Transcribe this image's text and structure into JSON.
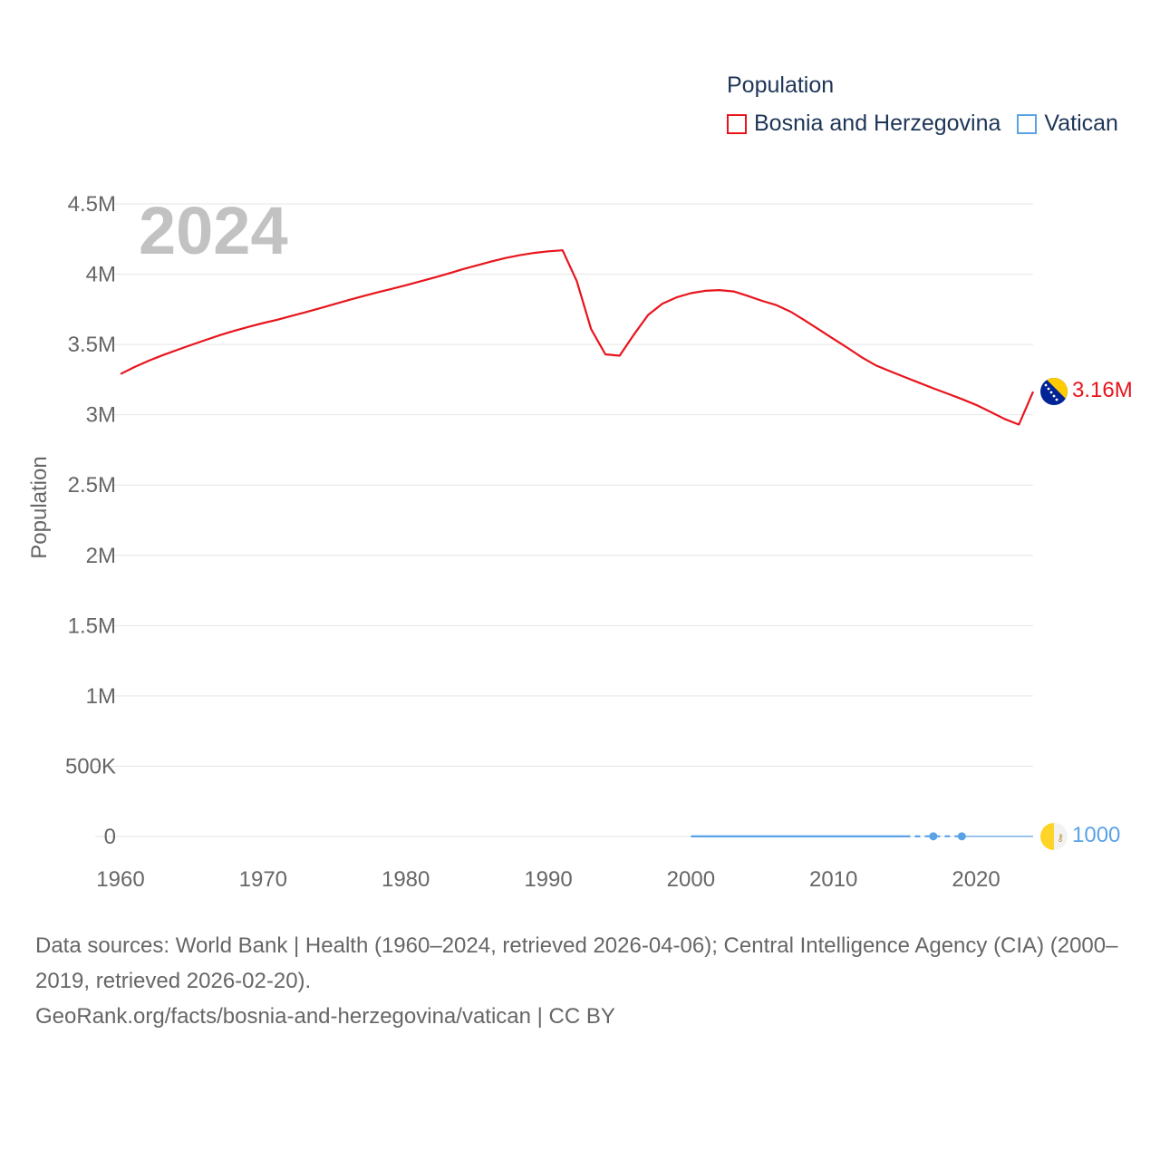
{
  "legend": {
    "title": "Population",
    "items": [
      {
        "label": "Bosnia and Herzegovina",
        "color": "#e8141c"
      },
      {
        "label": "Vatican",
        "color": "#5aa2e6"
      }
    ]
  },
  "footer": {
    "sources": "Data sources: World Bank | Health (1960–2024, retrieved 2026-04-06); Central Intelligence Agency (CIA) (2000–2019, retrieved 2026-02-20).",
    "credit": "GeoRank.org/facts/bosnia-and-herzegovina/vatican | CC BY"
  },
  "chart_data": {
    "type": "line",
    "title": "Population",
    "year_label": "2024",
    "ylabel": "Population",
    "xlim": [
      1960,
      2024
    ],
    "ylim": [
      0,
      4500000
    ],
    "x_ticks": [
      {
        "value": 1960,
        "label": "1960"
      },
      {
        "value": 1970,
        "label": "1970"
      },
      {
        "value": 1980,
        "label": "1980"
      },
      {
        "value": 1990,
        "label": "1990"
      },
      {
        "value": 2000,
        "label": "2000"
      },
      {
        "value": 2010,
        "label": "2010"
      },
      {
        "value": 2020,
        "label": "2020"
      }
    ],
    "y_ticks": [
      {
        "value": 0,
        "label": "0"
      },
      {
        "value": 500000,
        "label": "500K"
      },
      {
        "value": 1000000,
        "label": "1M"
      },
      {
        "value": 1500000,
        "label": "1.5M"
      },
      {
        "value": 2000000,
        "label": "2M"
      },
      {
        "value": 2500000,
        "label": "2.5M"
      },
      {
        "value": 3000000,
        "label": "3M"
      },
      {
        "value": 3500000,
        "label": "3.5M"
      },
      {
        "value": 4000000,
        "label": "4M"
      },
      {
        "value": 4500000,
        "label": "4.5M"
      }
    ],
    "grid": true,
    "series": [
      {
        "name": "Bosnia and Herzegovina",
        "color": "#e8141c",
        "end_label": "3.16M",
        "flag_icon": "bosnia-flag-icon",
        "points": [
          [
            1960,
            3290000
          ],
          [
            1961,
            3340000
          ],
          [
            1962,
            3385000
          ],
          [
            1963,
            3425000
          ],
          [
            1964,
            3462000
          ],
          [
            1965,
            3498000
          ],
          [
            1966,
            3533000
          ],
          [
            1967,
            3567000
          ],
          [
            1968,
            3598000
          ],
          [
            1969,
            3626000
          ],
          [
            1970,
            3652000
          ],
          [
            1971,
            3676000
          ],
          [
            1972,
            3703000
          ],
          [
            1973,
            3730000
          ],
          [
            1974,
            3758000
          ],
          [
            1975,
            3787000
          ],
          [
            1976,
            3816000
          ],
          [
            1977,
            3844000
          ],
          [
            1978,
            3870000
          ],
          [
            1979,
            3895000
          ],
          [
            1980,
            3921000
          ],
          [
            1981,
            3948000
          ],
          [
            1982,
            3976000
          ],
          [
            1983,
            4005000
          ],
          [
            1984,
            4035000
          ],
          [
            1985,
            4063000
          ],
          [
            1986,
            4090000
          ],
          [
            1987,
            4115000
          ],
          [
            1988,
            4135000
          ],
          [
            1989,
            4151000
          ],
          [
            1990,
            4163000
          ],
          [
            1991,
            4170000
          ],
          [
            1992,
            3950000
          ],
          [
            1993,
            3610000
          ],
          [
            1994,
            3430000
          ],
          [
            1995,
            3420000
          ],
          [
            1996,
            3570000
          ],
          [
            1997,
            3710000
          ],
          [
            1998,
            3790000
          ],
          [
            1999,
            3835000
          ],
          [
            2000,
            3865000
          ],
          [
            2001,
            3882000
          ],
          [
            2002,
            3887000
          ],
          [
            2003,
            3877000
          ],
          [
            2004,
            3845000
          ],
          [
            2005,
            3810000
          ],
          [
            2006,
            3780000
          ],
          [
            2007,
            3733000
          ],
          [
            2008,
            3670000
          ],
          [
            2009,
            3605000
          ],
          [
            2010,
            3540000
          ],
          [
            2011,
            3475000
          ],
          [
            2012,
            3408000
          ],
          [
            2013,
            3350000
          ],
          [
            2014,
            3308000
          ],
          [
            2015,
            3268000
          ],
          [
            2016,
            3228000
          ],
          [
            2017,
            3188000
          ],
          [
            2018,
            3150000
          ],
          [
            2019,
            3112000
          ],
          [
            2020,
            3070000
          ],
          [
            2021,
            3021000
          ],
          [
            2022,
            2970000
          ],
          [
            2023,
            2930000
          ],
          [
            2024,
            3164000
          ]
        ]
      },
      {
        "name": "Vatican",
        "color": "#5aa2e6",
        "end_label": "1000",
        "flag_icon": "vatican-flag-icon",
        "points": [
          [
            2000,
            880
          ],
          [
            2001,
            890
          ],
          [
            2002,
            900
          ],
          [
            2003,
            910
          ],
          [
            2004,
            920
          ],
          [
            2005,
            930
          ],
          [
            2006,
            930
          ],
          [
            2007,
            930
          ],
          [
            2008,
            930
          ],
          [
            2009,
            830
          ],
          [
            2010,
            830
          ],
          [
            2011,
            830
          ],
          [
            2012,
            840
          ],
          [
            2013,
            840
          ],
          [
            2014,
            840
          ],
          [
            2015,
            840
          ],
          [
            2017,
            1000
          ],
          [
            2019,
            1000
          ],
          [
            2024,
            1000
          ]
        ],
        "markers": [
          2017,
          2019
        ]
      }
    ]
  }
}
